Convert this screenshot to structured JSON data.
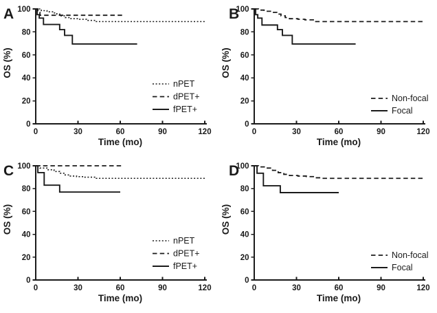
{
  "figure": {
    "background": "#ffffff",
    "ink": "#1a1a1a"
  },
  "chart_data": [
    {
      "type": "line",
      "curve_type": "kaplan-meier-step",
      "panel_label": "A",
      "xlabel": "Time (mo)",
      "ylabel": "OS (%)",
      "xlim": [
        0,
        120
      ],
      "ylim": [
        0,
        100
      ],
      "xticks": [
        0,
        30,
        60,
        90,
        120
      ],
      "yticks": [
        0,
        20,
        40,
        60,
        80,
        100
      ],
      "grid": false,
      "legend_position": "inside-lower-right",
      "series": [
        {
          "name": "nPET",
          "line_style": "dotted",
          "points": [
            [
              0,
              100
            ],
            [
              4,
              98.5
            ],
            [
              8,
              97.5
            ],
            [
              12,
              96.5
            ],
            [
              15,
              95.5
            ],
            [
              18,
              94
            ],
            [
              21,
              92.5
            ],
            [
              25,
              91.5
            ],
            [
              30,
              91
            ],
            [
              36,
              90
            ],
            [
              43,
              89
            ],
            [
              120,
              89
            ]
          ]
        },
        {
          "name": "dPET+",
          "line_style": "dashed",
          "points": [
            [
              0,
              100
            ],
            [
              1.5,
              97
            ],
            [
              3,
              94.5
            ],
            [
              62,
              94.5
            ]
          ]
        },
        {
          "name": "fPET+",
          "line_style": "solid",
          "points": [
            [
              0,
              100
            ],
            [
              1,
              95
            ],
            [
              2.5,
              92
            ],
            [
              5.5,
              86.5
            ],
            [
              17,
              82
            ],
            [
              20.5,
              77
            ],
            [
              26,
              69.5
            ],
            [
              72,
              69.5
            ]
          ]
        }
      ]
    },
    {
      "type": "line",
      "curve_type": "kaplan-meier-step",
      "panel_label": "B",
      "xlabel": "Time (mo)",
      "ylabel": "OS (%)",
      "xlim": [
        0,
        120
      ],
      "ylim": [
        0,
        100
      ],
      "xticks": [
        0,
        30,
        60,
        90,
        120
      ],
      "yticks": [
        0,
        20,
        40,
        60,
        80,
        100
      ],
      "grid": false,
      "legend_position": "inside-lower-right",
      "series": [
        {
          "name": "Non-focal",
          "line_style": "dashed",
          "points": [
            [
              0,
              100
            ],
            [
              3,
              99
            ],
            [
              7,
              98
            ],
            [
              12,
              97
            ],
            [
              16,
              95.5
            ],
            [
              19,
              94
            ],
            [
              22,
              92.5
            ],
            [
              25,
              91.5
            ],
            [
              31,
              91
            ],
            [
              36,
              90.5
            ],
            [
              43,
              89
            ],
            [
              120,
              89
            ]
          ]
        },
        {
          "name": "Focal",
          "line_style": "solid",
          "points": [
            [
              0,
              100
            ],
            [
              1,
              95
            ],
            [
              2.5,
              92
            ],
            [
              5.5,
              86
            ],
            [
              16.5,
              82
            ],
            [
              20,
              77
            ],
            [
              27,
              69.5
            ],
            [
              72,
              69.5
            ]
          ]
        }
      ]
    },
    {
      "type": "line",
      "curve_type": "kaplan-meier-step",
      "panel_label": "C",
      "xlabel": "Time (mo)",
      "ylabel": "OS (%)",
      "xlim": [
        0,
        120
      ],
      "ylim": [
        0,
        100
      ],
      "xticks": [
        0,
        30,
        60,
        90,
        120
      ],
      "yticks": [
        0,
        20,
        40,
        60,
        80,
        100
      ],
      "grid": false,
      "legend_position": "inside-lower-right",
      "series": [
        {
          "name": "nPET",
          "line_style": "dotted",
          "points": [
            [
              0,
              100
            ],
            [
              3,
              98
            ],
            [
              8,
              96.5
            ],
            [
              13,
              95
            ],
            [
              17,
              93.5
            ],
            [
              20,
              92
            ],
            [
              24,
              91
            ],
            [
              29,
              90.5
            ],
            [
              34,
              90
            ],
            [
              43,
              89
            ],
            [
              120,
              89
            ]
          ]
        },
        {
          "name": "dPET+",
          "line_style": "dashed",
          "points": [
            [
              0,
              100
            ],
            [
              62,
              100
            ]
          ]
        },
        {
          "name": "fPET+",
          "line_style": "solid",
          "points": [
            [
              0,
              100
            ],
            [
              1.5,
              94
            ],
            [
              6,
              83
            ],
            [
              17,
              77
            ],
            [
              60,
              77
            ]
          ]
        }
      ]
    },
    {
      "type": "line",
      "curve_type": "kaplan-meier-step",
      "panel_label": "D",
      "xlabel": "Time (mo)",
      "ylabel": "OS (%)",
      "xlim": [
        0,
        120
      ],
      "ylim": [
        0,
        100
      ],
      "xticks": [
        0,
        30,
        60,
        90,
        120
      ],
      "yticks": [
        0,
        20,
        40,
        60,
        80,
        100
      ],
      "grid": false,
      "legend_position": "inside-lower-right",
      "series": [
        {
          "name": "Non-focal",
          "line_style": "dashed",
          "points": [
            [
              0,
              100
            ],
            [
              3,
              99
            ],
            [
              8,
              98
            ],
            [
              13,
              96
            ],
            [
              17,
              94
            ],
            [
              21,
              92.5
            ],
            [
              25,
              91.5
            ],
            [
              31,
              91
            ],
            [
              37,
              90.5
            ],
            [
              43,
              89.5
            ],
            [
              48,
              89
            ],
            [
              120,
              89
            ]
          ]
        },
        {
          "name": "Focal",
          "line_style": "solid",
          "points": [
            [
              0,
              100
            ],
            [
              2,
              93.5
            ],
            [
              6.5,
              82.5
            ],
            [
              18.5,
              76.5
            ],
            [
              60,
              76.5
            ]
          ]
        }
      ]
    }
  ]
}
